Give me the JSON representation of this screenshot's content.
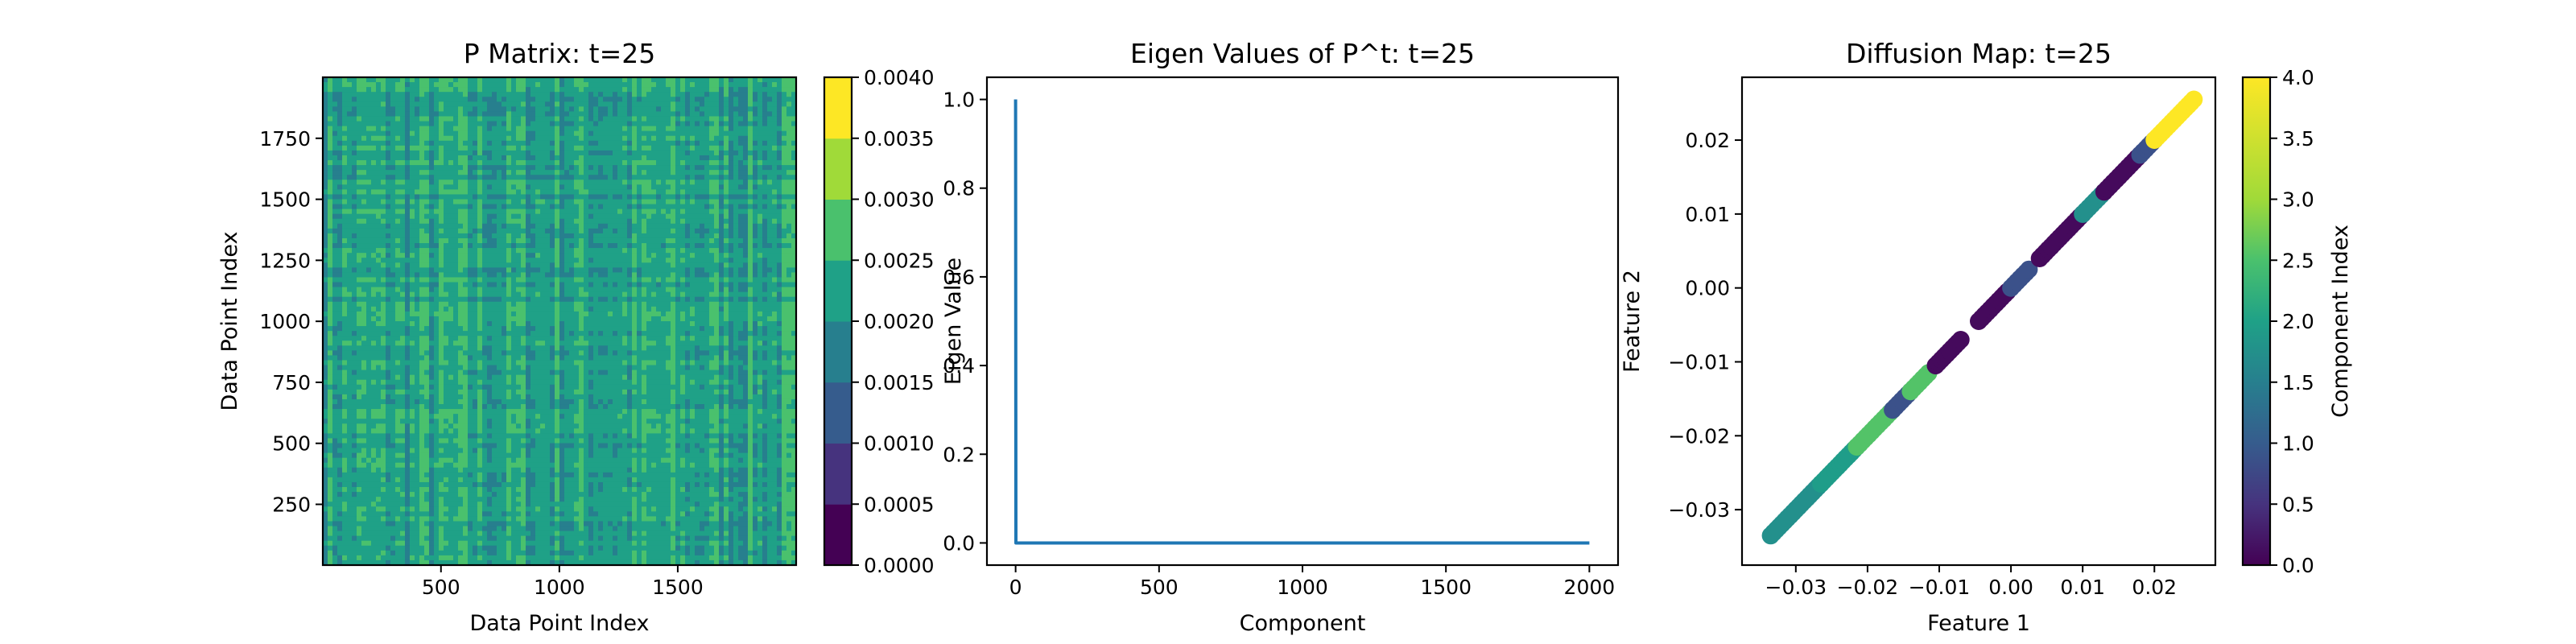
{
  "figure": {
    "background": "#ffffff"
  },
  "chart_data": [
    {
      "type": "heatmap",
      "title": "P Matrix: t=25",
      "xlabel": "Data Point Index",
      "ylabel": "Data Point Index",
      "x_ticks": [
        "500",
        "1000",
        "1500"
      ],
      "x_tick_values": [
        500,
        1000,
        1500
      ],
      "y_ticks": [
        "250",
        "500",
        "750",
        "1000",
        "1250",
        "1500",
        "1750"
      ],
      "y_tick_values": [
        250,
        500,
        750,
        1000,
        1250,
        1500,
        1750
      ],
      "xlim": [
        1,
        2000
      ],
      "ylim": [
        1,
        2000
      ],
      "colormap": "viridis",
      "value_range": [
        0.0,
        0.004
      ],
      "dominant_value_range": [
        0.0015,
        0.003
      ],
      "colorbar_ticks": [
        "0.0000",
        "0.0005",
        "0.0010",
        "0.0015",
        "0.0020",
        "0.0025",
        "0.0030",
        "0.0035",
        "0.0040"
      ],
      "colorbar_colors": [
        "#440154",
        "#46337e",
        "#365c8d",
        "#277f8e",
        "#1fa187",
        "#4ac16d",
        "#a0da39",
        "#fde725"
      ]
    },
    {
      "type": "line",
      "title": "Eigen Values of P^t: t=25",
      "xlabel": "Component",
      "ylabel": "Eigen Value",
      "x_ticks": [
        "0",
        "500",
        "1000",
        "1500",
        "2000"
      ],
      "x_tick_values": [
        0,
        500,
        1000,
        1500,
        2000
      ],
      "y_ticks": [
        "0.0",
        "0.2",
        "0.4",
        "0.6",
        "0.8",
        "1.0"
      ],
      "y_tick_values": [
        0,
        0.2,
        0.4,
        0.6,
        0.8,
        1.0
      ],
      "xlim": [
        -100,
        2100
      ],
      "ylim": [
        -0.05,
        1.05
      ],
      "series": [
        {
          "color": "#1f77b4",
          "x": [
            0,
            1,
            2,
            2000
          ],
          "y": [
            1.0,
            0.0,
            0.0,
            0.0
          ]
        }
      ]
    },
    {
      "type": "scatter",
      "title": "Diffusion Map: t=25",
      "xlabel": "Feature 1",
      "ylabel": "Feature 2",
      "x_ticks": [
        "−0.03",
        "−0.02",
        "−0.01",
        "0.00",
        "0.01",
        "0.02"
      ],
      "x_tick_values": [
        -0.03,
        -0.02,
        -0.01,
        0.0,
        0.01,
        0.02
      ],
      "y_ticks": [
        "−0.03",
        "−0.02",
        "−0.01",
        "0.00",
        "0.01",
        "0.02"
      ],
      "y_tick_values": [
        -0.03,
        -0.02,
        -0.01,
        0.0,
        0.01,
        0.02
      ],
      "xlim": [
        -0.0375,
        0.0285
      ],
      "ylim": [
        -0.0375,
        0.0285
      ],
      "colormap": "viridis",
      "colorbar_label": "Component Index",
      "colorbar_ticks": [
        "0.0",
        "0.5",
        "1.0",
        "1.5",
        "2.0",
        "2.5",
        "3.0",
        "3.5",
        "4.0"
      ],
      "colorbar_tick_values": [
        0,
        0.5,
        1,
        1.5,
        2,
        2.5,
        3,
        3.5,
        4
      ],
      "color_range": [
        0,
        4
      ],
      "segments": [
        {
          "x0": -0.0335,
          "x1": -0.0265,
          "component": 2.0
        },
        {
          "x0": -0.0265,
          "x1": -0.0215,
          "component": 2.2
        },
        {
          "x0": -0.0215,
          "x1": -0.0165,
          "component": 2.9
        },
        {
          "x0": -0.0165,
          "x1": -0.014,
          "component": 1.0
        },
        {
          "x0": -0.014,
          "x1": -0.0115,
          "component": 2.9
        },
        {
          "x0": -0.0105,
          "x1": -0.007,
          "component": 0.1
        },
        {
          "x0": -0.0045,
          "x1": -0.0005,
          "component": 0.1
        },
        {
          "x0": 0.0,
          "x1": 0.0025,
          "component": 1.0
        },
        {
          "x0": 0.004,
          "x1": 0.01,
          "component": 0.1
        },
        {
          "x0": 0.01,
          "x1": 0.013,
          "component": 2.0
        },
        {
          "x0": 0.013,
          "x1": 0.018,
          "component": 0.1
        },
        {
          "x0": 0.018,
          "x1": 0.02,
          "component": 1.0
        },
        {
          "x0": 0.02,
          "x1": 0.0255,
          "component": 4.0
        }
      ]
    }
  ]
}
